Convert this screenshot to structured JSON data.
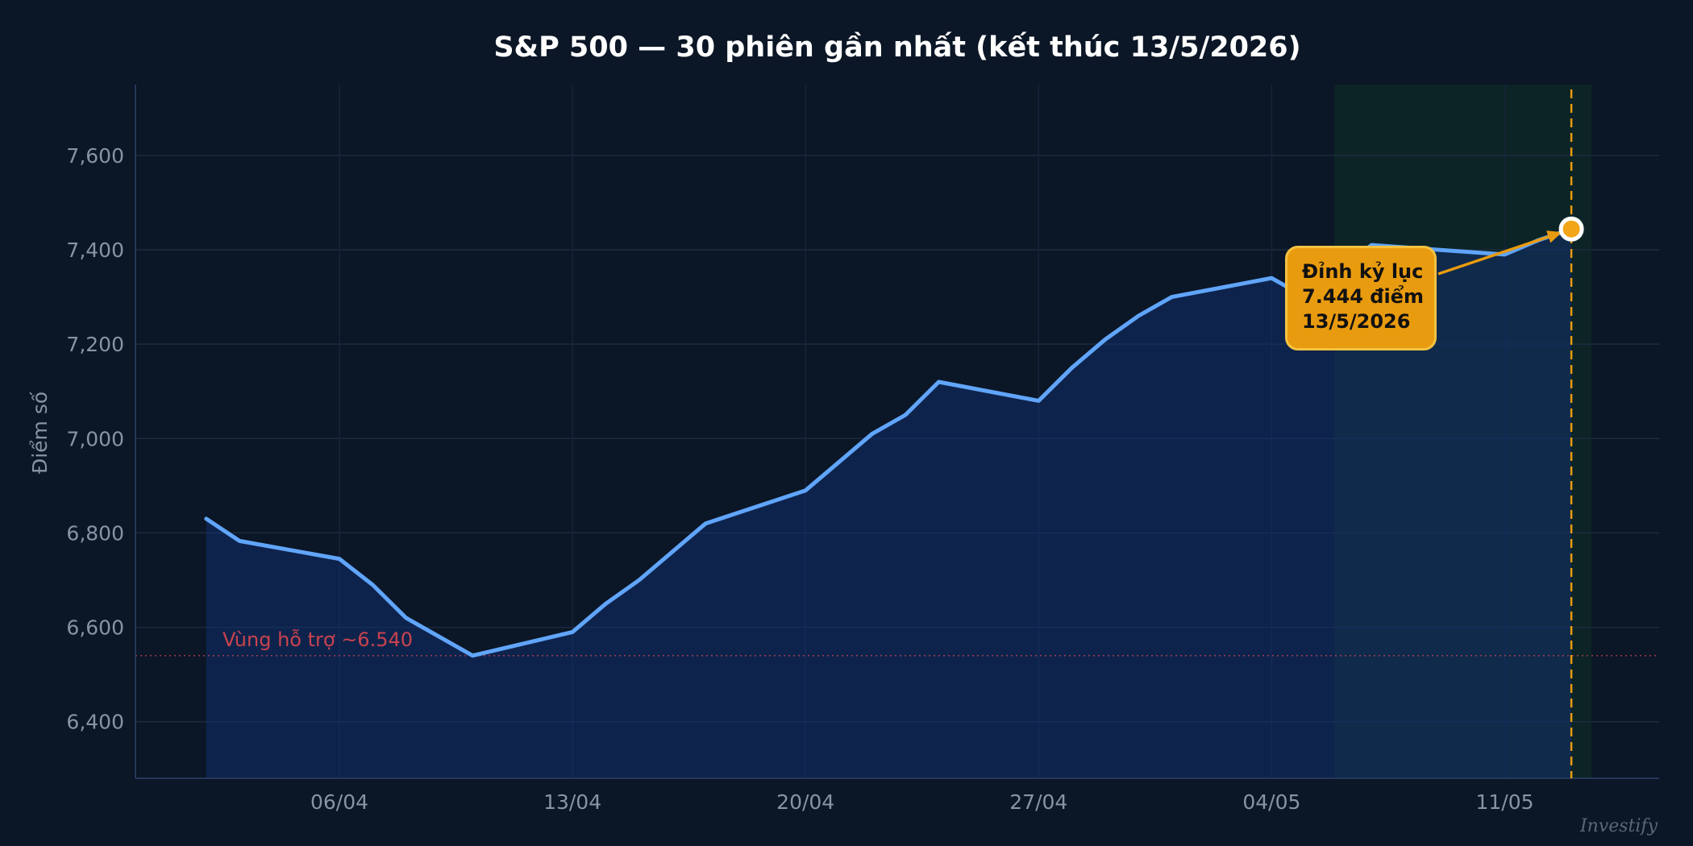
{
  "chart_data": {
    "type": "line",
    "title": "S&P 500 — 30 phiên gần nhất (kết thúc 13/5/2026)",
    "ylabel": "Điểm số",
    "xlabel": "",
    "ylim": [
      6280,
      7750
    ],
    "yticks": [
      6400,
      6600,
      6800,
      7000,
      7200,
      7400,
      7600
    ],
    "ytick_labels": [
      "6,400",
      "6,600",
      "6,800",
      "7,000",
      "7,200",
      "7,400",
      "7,600"
    ],
    "xticks": [
      "2026-04-06",
      "2026-04-13",
      "2026-04-20",
      "2026-04-27",
      "2026-05-04",
      "2026-05-11"
    ],
    "xtick_labels": [
      "06/04",
      "13/04",
      "20/04",
      "27/04",
      "04/05",
      "11/05"
    ],
    "grid": true,
    "series": [
      {
        "color": "#60a5fa",
        "x": [
          "2026-04-02",
          "2026-04-03",
          "2026-04-06",
          "2026-04-07",
          "2026-04-08",
          "2026-04-10",
          "2026-04-13",
          "2026-04-14",
          "2026-04-15",
          "2026-04-17",
          "2026-04-20",
          "2026-04-22",
          "2026-04-23",
          "2026-04-24",
          "2026-04-27",
          "2026-04-28",
          "2026-04-29",
          "2026-04-30",
          "2026-05-01",
          "2026-05-04",
          "2026-05-05",
          "2026-05-07",
          "2026-05-11",
          "2026-05-12",
          "2026-05-13"
        ],
        "values": [
          6830,
          6783,
          6745,
          6690,
          6620,
          6540,
          6590,
          6650,
          6700,
          6820,
          6890,
          7010,
          7050,
          7120,
          7080,
          7150,
          7210,
          7260,
          7300,
          7340,
          7300,
          7410,
          7390,
          7420,
          7444
        ]
      }
    ],
    "support_line": {
      "value": 6540,
      "label": "Vùng hỗ trợ ~6.540",
      "color": "#c8434f"
    },
    "highlight_region": {
      "x_start": "2026-05-06",
      "x_end": "2026-05-13",
      "color": "#0d2a26"
    },
    "record_marker": {
      "x": "2026-05-13",
      "value": 7444
    },
    "annotation": {
      "lines": [
        "Đỉnh kỷ lục",
        "7.444 điểm",
        "13/5/2026"
      ],
      "color": "#e99b0f",
      "border_color": "#f5c242"
    },
    "watermark": "Investify"
  }
}
